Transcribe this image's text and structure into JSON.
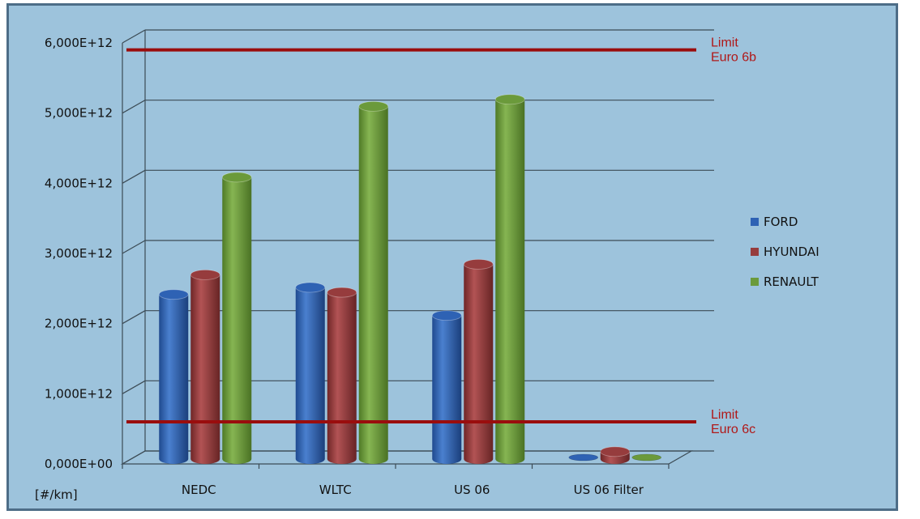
{
  "chart_data": {
    "type": "bar",
    "unit_label": "[#/km]",
    "categories": [
      "NEDC",
      "WLTC",
      "US 06",
      "US 06 Filter"
    ],
    "series": [
      {
        "name": "FORD",
        "color": "#2e62b4",
        "values": [
          2300000000000.0,
          2400000000000.0,
          2000000000000.0,
          20000000000.0
        ]
      },
      {
        "name": "HYUNDAI",
        "color": "#963c3d",
        "values": [
          2580000000000.0,
          2330000000000.0,
          2730000000000.0,
          60000000000.0
        ]
      },
      {
        "name": "RENAULT",
        "color": "#6b9a3b",
        "values": [
          3970000000000.0,
          4980000000000.0,
          5080000000000.0,
          20000000000.0
        ]
      }
    ],
    "y_ticks": [
      "0,000E+00",
      "1,000E+12",
      "2,000E+12",
      "3,000E+12",
      "4,000E+12",
      "5,000E+12",
      "6,000E+12"
    ],
    "ylim": [
      0,
      6000000000000.0
    ],
    "limits": [
      {
        "value": 5900000000000.0,
        "label_lines": [
          "Limit",
          "Euro 6b"
        ],
        "color": "#9a0d0d"
      },
      {
        "value": 600000000000.0,
        "label_lines": [
          "Limit",
          "Euro 6c"
        ],
        "color": "#9a0d0d"
      }
    ],
    "legend_position": "right",
    "grid": true
  }
}
